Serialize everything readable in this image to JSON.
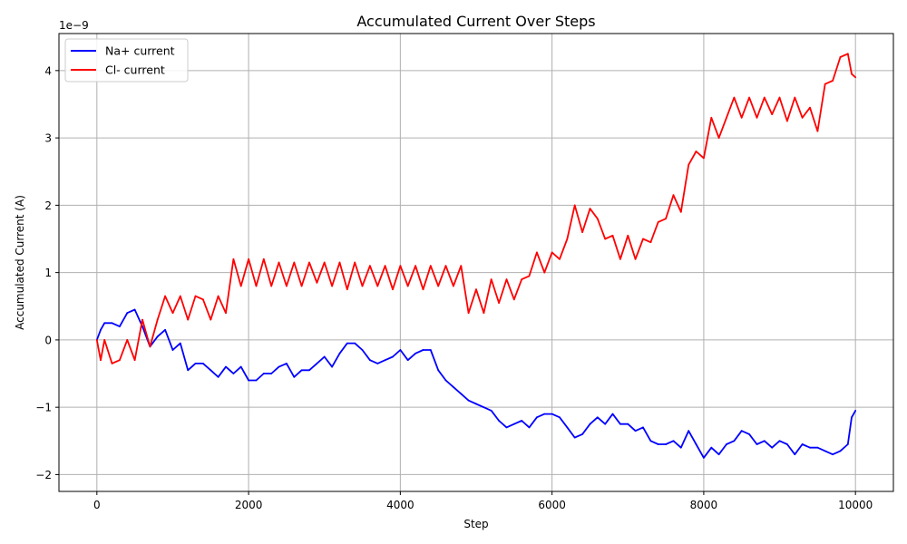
{
  "chart_data": {
    "type": "line",
    "title": "Accumulated Current Over Steps",
    "xlabel": "Step",
    "ylabel": "Accumulated Current (A)",
    "y_offset_label": "1e−9",
    "xlim": [
      -500,
      10500
    ],
    "ylim": [
      -2.25,
      4.55
    ],
    "x_ticks": [
      0,
      2000,
      4000,
      6000,
      8000,
      10000
    ],
    "x_tick_labels": [
      "0",
      "2000",
      "4000",
      "6000",
      "8000",
      "10000"
    ],
    "y_ticks": [
      -2,
      -1,
      0,
      1,
      2,
      3,
      4
    ],
    "y_tick_labels": [
      "−2",
      "−1",
      "0",
      "1",
      "2",
      "3",
      "4"
    ],
    "grid": true,
    "legend_position": "top-left",
    "colors": {
      "na": "#0000ff",
      "cl": "#ff0000",
      "grid": "#b0b0b0"
    },
    "series": [
      {
        "name": "Na+ current",
        "color": "#0000ff",
        "x": [
          0,
          50,
          100,
          200,
          300,
          400,
          500,
          600,
          700,
          800,
          900,
          1000,
          1100,
          1200,
          1300,
          1400,
          1500,
          1600,
          1700,
          1800,
          1900,
          2000,
          2100,
          2200,
          2300,
          2400,
          2500,
          2600,
          2700,
          2800,
          2900,
          3000,
          3100,
          3200,
          3300,
          3400,
          3500,
          3600,
          3700,
          3800,
          3900,
          4000,
          4100,
          4200,
          4300,
          4400,
          4500,
          4600,
          4700,
          4800,
          4900,
          5000,
          5100,
          5200,
          5300,
          5400,
          5500,
          5600,
          5700,
          5800,
          5900,
          6000,
          6100,
          6200,
          6300,
          6400,
          6500,
          6600,
          6700,
          6800,
          6900,
          7000,
          7100,
          7200,
          7300,
          7400,
          7500,
          7600,
          7700,
          7800,
          7900,
          8000,
          8100,
          8200,
          8300,
          8400,
          8500,
          8600,
          8700,
          8800,
          8900,
          9000,
          9100,
          9200,
          9300,
          9400,
          9500,
          9600,
          9700,
          9800,
          9900,
          9950,
          10000
        ],
        "values": [
          0.0,
          0.15,
          0.25,
          0.25,
          0.2,
          0.4,
          0.45,
          0.2,
          -0.1,
          0.05,
          0.15,
          -0.15,
          -0.05,
          -0.45,
          -0.35,
          -0.35,
          -0.45,
          -0.55,
          -0.4,
          -0.5,
          -0.4,
          -0.6,
          -0.6,
          -0.5,
          -0.5,
          -0.4,
          -0.35,
          -0.55,
          -0.45,
          -0.45,
          -0.35,
          -0.25,
          -0.4,
          -0.2,
          -0.05,
          -0.05,
          -0.15,
          -0.3,
          -0.35,
          -0.3,
          -0.25,
          -0.15,
          -0.3,
          -0.2,
          -0.15,
          -0.15,
          -0.45,
          -0.6,
          -0.7,
          -0.8,
          -0.9,
          -0.95,
          -1.0,
          -1.05,
          -1.2,
          -1.3,
          -1.25,
          -1.2,
          -1.3,
          -1.15,
          -1.1,
          -1.1,
          -1.15,
          -1.3,
          -1.45,
          -1.4,
          -1.25,
          -1.15,
          -1.25,
          -1.1,
          -1.25,
          -1.25,
          -1.35,
          -1.3,
          -1.5,
          -1.55,
          -1.55,
          -1.5,
          -1.6,
          -1.35,
          -1.55,
          -1.75,
          -1.6,
          -1.7,
          -1.55,
          -1.5,
          -1.35,
          -1.4,
          -1.55,
          -1.5,
          -1.6,
          -1.5,
          -1.55,
          -1.7,
          -1.55,
          -1.6,
          -1.6,
          -1.65,
          -1.7,
          -1.65,
          -1.55,
          -1.15,
          -1.05
        ]
      },
      {
        "name": "Cl- current",
        "color": "#ff0000",
        "x": [
          0,
          50,
          100,
          200,
          300,
          400,
          500,
          600,
          700,
          800,
          900,
          1000,
          1100,
          1200,
          1300,
          1400,
          1500,
          1600,
          1700,
          1800,
          1900,
          2000,
          2100,
          2200,
          2300,
          2400,
          2500,
          2600,
          2700,
          2800,
          2900,
          3000,
          3100,
          3200,
          3300,
          3400,
          3500,
          3600,
          3700,
          3800,
          3900,
          4000,
          4100,
          4200,
          4300,
          4400,
          4500,
          4600,
          4700,
          4800,
          4900,
          5000,
          5100,
          5200,
          5300,
          5400,
          5500,
          5600,
          5700,
          5800,
          5900,
          6000,
          6100,
          6200,
          6300,
          6400,
          6500,
          6600,
          6700,
          6800,
          6900,
          7000,
          7100,
          7200,
          7300,
          7400,
          7500,
          7600,
          7700,
          7800,
          7900,
          8000,
          8100,
          8200,
          8300,
          8400,
          8500,
          8600,
          8700,
          8800,
          8900,
          9000,
          9100,
          9200,
          9300,
          9400,
          9500,
          9600,
          9700,
          9800,
          9900,
          9950,
          10000
        ],
        "values": [
          0.0,
          -0.3,
          0.0,
          -0.35,
          -0.3,
          0.0,
          -0.3,
          0.3,
          -0.1,
          0.3,
          0.65,
          0.4,
          0.65,
          0.3,
          0.65,
          0.6,
          0.3,
          0.65,
          0.4,
          1.2,
          0.8,
          1.2,
          0.8,
          1.2,
          0.8,
          1.15,
          0.8,
          1.15,
          0.8,
          1.15,
          0.85,
          1.15,
          0.8,
          1.15,
          0.75,
          1.15,
          0.8,
          1.1,
          0.8,
          1.1,
          0.75,
          1.1,
          0.8,
          1.1,
          0.75,
          1.1,
          0.8,
          1.1,
          0.8,
          1.1,
          0.4,
          0.75,
          0.4,
          0.9,
          0.55,
          0.9,
          0.6,
          0.9,
          0.95,
          1.3,
          1.0,
          1.3,
          1.2,
          1.5,
          2.0,
          1.6,
          1.95,
          1.8,
          1.5,
          1.55,
          1.2,
          1.55,
          1.2,
          1.5,
          1.45,
          1.75,
          1.8,
          2.15,
          1.9,
          2.6,
          2.8,
          2.7,
          3.3,
          3.0,
          3.3,
          3.6,
          3.3,
          3.6,
          3.3,
          3.6,
          3.35,
          3.6,
          3.25,
          3.6,
          3.3,
          3.45,
          3.1,
          3.8,
          3.85,
          4.2,
          4.25,
          3.95,
          3.9
        ]
      }
    ]
  }
}
